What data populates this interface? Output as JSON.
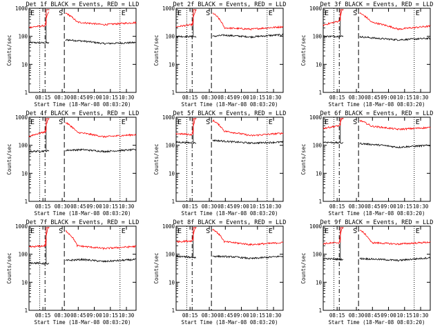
{
  "ylabel": "Counts/sec",
  "xlabel": "Start Time (18-Mar-08 08:03:20)",
  "ytick_labels": [
    "1",
    "10",
    "100",
    "1000"
  ],
  "xtick_labels": [
    "08:15",
    "08:30",
    "08:45",
    "09:00",
    "10:15",
    "10:30"
  ],
  "colors": {
    "events": "#000000",
    "lld": "#ff0000",
    "axes": "#000000"
  },
  "markers": {
    "s": "S",
    "e": "E"
  },
  "chart_data": [
    {
      "type": "line",
      "title": "Det 1f BLACK = Events, RED = LLD",
      "yscale": "log",
      "ylim": [
        1,
        1000
      ],
      "xlim": [
        "08:03",
        "10:42"
      ],
      "series": [
        {
          "key": "events",
          "values_at": [
            [
              0,
              60
            ],
            [
              0.2,
              58
            ],
            [
              0.3,
              55
            ],
            [
              0.35,
              75
            ],
            [
              0.5,
              68
            ],
            [
              0.7,
              55
            ],
            [
              1,
              60
            ]
          ]
        },
        {
          "key": "lld",
          "values_at": [
            [
              0,
              210
            ],
            [
              0.15,
              240
            ],
            [
              0.18,
              700
            ],
            [
              0.35,
              650
            ],
            [
              0.45,
              320
            ],
            [
              0.7,
              260
            ],
            [
              1,
              310
            ]
          ]
        }
      ]
    },
    {
      "type": "line",
      "title": "Det 2f BLACK = Events, RED = LLD",
      "yscale": "log",
      "ylim": [
        1,
        1000
      ],
      "xlim": [
        "08:03",
        "10:42"
      ],
      "series": [
        {
          "key": "events",
          "values_at": [
            [
              0,
              100
            ],
            [
              0.3,
              95
            ],
            [
              0.45,
              110
            ],
            [
              0.7,
              95
            ],
            [
              1,
              115
            ]
          ]
        },
        {
          "key": "lld",
          "values_at": [
            [
              0,
              220
            ],
            [
              0.15,
              260
            ],
            [
              0.18,
              800
            ],
            [
              0.35,
              650
            ],
            [
              0.45,
              200
            ],
            [
              0.7,
              180
            ],
            [
              1,
              220
            ]
          ]
        }
      ]
    },
    {
      "type": "line",
      "title": "Det 3f BLACK = Events, RED = LLD",
      "yscale": "log",
      "ylim": [
        1,
        1000
      ],
      "xlim": [
        "08:03",
        "10:42"
      ],
      "series": [
        {
          "key": "events",
          "values_at": [
            [
              0,
              100
            ],
            [
              0.3,
              100
            ],
            [
              0.5,
              85
            ],
            [
              0.7,
              75
            ],
            [
              1,
              85
            ]
          ]
        },
        {
          "key": "lld",
          "values_at": [
            [
              0,
              250
            ],
            [
              0.15,
              350
            ],
            [
              0.18,
              900
            ],
            [
              0.35,
              650
            ],
            [
              0.45,
              320
            ],
            [
              0.7,
              180
            ],
            [
              1,
              230
            ]
          ]
        }
      ]
    },
    {
      "type": "line",
      "title": "Det 4f BLACK = Events, RED = LLD",
      "yscale": "log",
      "ylim": [
        1,
        1000
      ],
      "xlim": [
        "08:03",
        "10:42"
      ],
      "series": [
        {
          "key": "events",
          "values_at": [
            [
              0,
              60
            ],
            [
              0.3,
              65
            ],
            [
              0.5,
              70
            ],
            [
              0.7,
              60
            ],
            [
              1,
              70
            ]
          ]
        },
        {
          "key": "lld",
          "values_at": [
            [
              0,
              210
            ],
            [
              0.15,
              300
            ],
            [
              0.18,
              900
            ],
            [
              0.35,
              620
            ],
            [
              0.45,
              290
            ],
            [
              0.7,
              200
            ],
            [
              1,
              240
            ]
          ]
        }
      ]
    },
    {
      "type": "line",
      "title": "Det 5f BLACK = Events, RED = LLD",
      "yscale": "log",
      "ylim": [
        1,
        1000
      ],
      "xlim": [
        "08:03",
        "10:42"
      ],
      "series": [
        {
          "key": "events",
          "values_at": [
            [
              0,
              130
            ],
            [
              0.2,
              120
            ],
            [
              0.35,
              150
            ],
            [
              0.5,
              135
            ],
            [
              0.7,
              120
            ],
            [
              1,
              130
            ]
          ]
        },
        {
          "key": "lld",
          "values_at": [
            [
              0,
              260
            ],
            [
              0.15,
              240
            ],
            [
              0.18,
              900
            ],
            [
              0.35,
              750
            ],
            [
              0.45,
              320
            ],
            [
              0.7,
              220
            ],
            [
              1,
              270
            ]
          ]
        }
      ]
    },
    {
      "type": "line",
      "title": "Det 6f BLACK = Events, RED = LLD",
      "yscale": "log",
      "ylim": [
        1,
        1000
      ],
      "xlim": [
        "08:03",
        "10:42"
      ],
      "series": [
        {
          "key": "events",
          "values_at": [
            [
              0,
              130
            ],
            [
              0.2,
              120
            ],
            [
              0.35,
              115
            ],
            [
              0.55,
              100
            ],
            [
              0.7,
              85
            ],
            [
              1,
              100
            ]
          ]
        },
        {
          "key": "lld",
          "values_at": [
            [
              0,
              400
            ],
            [
              0.15,
              500
            ],
            [
              0.18,
              900
            ],
            [
              0.35,
              750
            ],
            [
              0.45,
              480
            ],
            [
              0.7,
              370
            ],
            [
              1,
              430
            ]
          ]
        }
      ]
    },
    {
      "type": "line",
      "title": "Det 7f BLACK = Events, RED = LLD",
      "yscale": "log",
      "ylim": [
        1,
        1000
      ],
      "xlim": [
        "08:03",
        "10:42"
      ],
      "series": [
        {
          "key": "events",
          "values_at": [
            [
              0,
              50
            ],
            [
              0.2,
              45
            ],
            [
              0.35,
              60
            ],
            [
              0.5,
              65
            ],
            [
              0.7,
              55
            ],
            [
              1,
              65
            ]
          ]
        },
        {
          "key": "lld",
          "values_at": [
            [
              0,
              180
            ],
            [
              0.15,
              200
            ],
            [
              0.18,
              900
            ],
            [
              0.35,
              650
            ],
            [
              0.45,
              200
            ],
            [
              0.7,
              160
            ],
            [
              1,
              190
            ]
          ]
        }
      ]
    },
    {
      "type": "line",
      "title": "Det 8f BLACK = Events, RED = LLD",
      "yscale": "log",
      "ylim": [
        1,
        1000
      ],
      "xlim": [
        "08:03",
        "10:42"
      ],
      "series": [
        {
          "key": "events",
          "values_at": [
            [
              0,
              85
            ],
            [
              0.2,
              75
            ],
            [
              0.35,
              85
            ],
            [
              0.55,
              80
            ],
            [
              0.7,
              70
            ],
            [
              1,
              85
            ]
          ]
        },
        {
          "key": "lld",
          "values_at": [
            [
              0,
              280
            ],
            [
              0.15,
              300
            ],
            [
              0.18,
              900
            ],
            [
              0.35,
              750
            ],
            [
              0.45,
              280
            ],
            [
              0.7,
              220
            ],
            [
              1,
              260
            ]
          ]
        }
      ]
    },
    {
      "type": "line",
      "title": "Det 9f BLACK = Events, RED = LLD",
      "yscale": "log",
      "ylim": [
        1,
        1000
      ],
      "xlim": [
        "08:03",
        "10:42"
      ],
      "series": [
        {
          "key": "events",
          "values_at": [
            [
              0,
              70
            ],
            [
              0.2,
              65
            ],
            [
              0.35,
              70
            ],
            [
              0.55,
              65
            ],
            [
              0.7,
              60
            ],
            [
              1,
              75
            ]
          ]
        },
        {
          "key": "lld",
          "values_at": [
            [
              0,
              240
            ],
            [
              0.15,
              260
            ],
            [
              0.18,
              900
            ],
            [
              0.35,
              700
            ],
            [
              0.45,
              260
            ],
            [
              0.7,
              230
            ],
            [
              1,
              270
            ]
          ]
        }
      ]
    }
  ]
}
